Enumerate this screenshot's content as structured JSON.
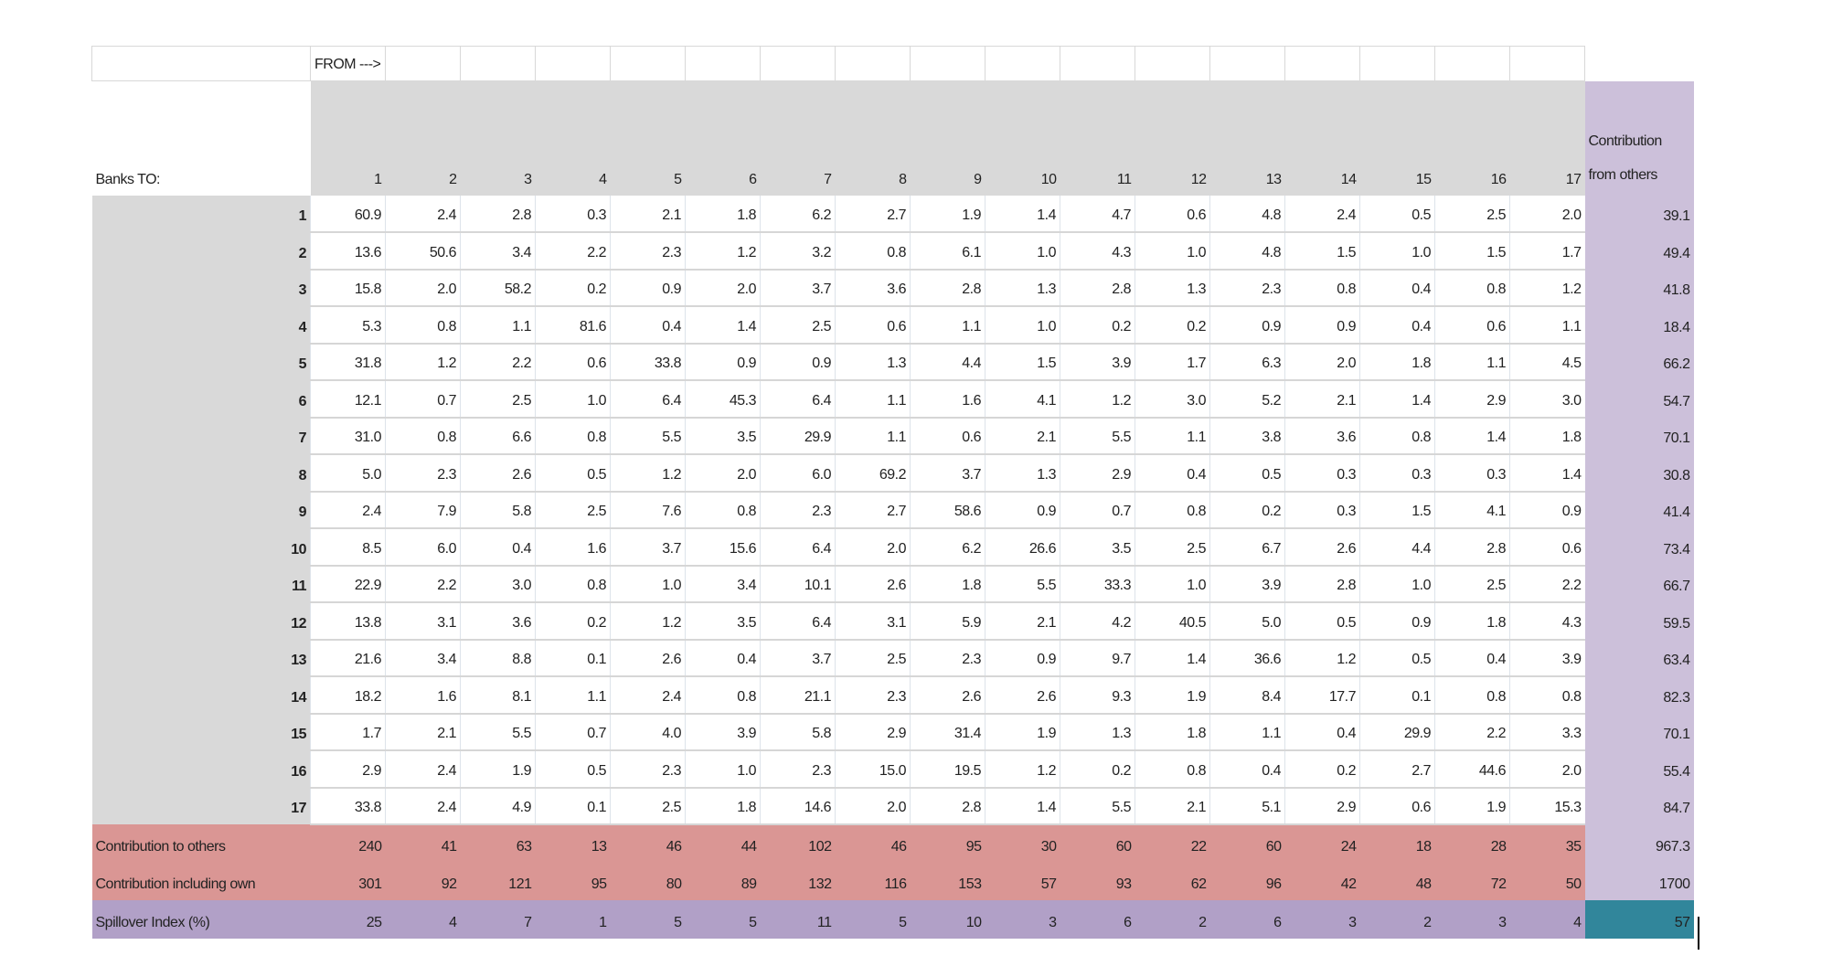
{
  "corner_label": "",
  "from_label": "FROM --->",
  "row_header_label": "Banks TO:",
  "last_col_header": "Contribution from others",
  "columns": [
    "1",
    "2",
    "3",
    "4",
    "5",
    "6",
    "7",
    "8",
    "9",
    "10",
    "11",
    "12",
    "13",
    "14",
    "15",
    "16",
    "17"
  ],
  "rows": [
    {
      "label": "1",
      "values": [
        "60.9",
        "2.4",
        "2.8",
        "0.3",
        "2.1",
        "1.8",
        "6.2",
        "2.7",
        "1.9",
        "1.4",
        "4.7",
        "0.6",
        "4.8",
        "2.4",
        "0.5",
        "2.5",
        "2.0"
      ],
      "from_others": "39.1"
    },
    {
      "label": "2",
      "values": [
        "13.6",
        "50.6",
        "3.4",
        "2.2",
        "2.3",
        "1.2",
        "3.2",
        "0.8",
        "6.1",
        "1.0",
        "4.3",
        "1.0",
        "4.8",
        "1.5",
        "1.0",
        "1.5",
        "1.7"
      ],
      "from_others": "49.4"
    },
    {
      "label": "3",
      "values": [
        "15.8",
        "2.0",
        "58.2",
        "0.2",
        "0.9",
        "2.0",
        "3.7",
        "3.6",
        "2.8",
        "1.3",
        "2.8",
        "1.3",
        "2.3",
        "0.8",
        "0.4",
        "0.8",
        "1.2"
      ],
      "from_others": "41.8"
    },
    {
      "label": "4",
      "values": [
        "5.3",
        "0.8",
        "1.1",
        "81.6",
        "0.4",
        "1.4",
        "2.5",
        "0.6",
        "1.1",
        "1.0",
        "0.2",
        "0.2",
        "0.9",
        "0.9",
        "0.4",
        "0.6",
        "1.1"
      ],
      "from_others": "18.4"
    },
    {
      "label": "5",
      "values": [
        "31.8",
        "1.2",
        "2.2",
        "0.6",
        "33.8",
        "0.9",
        "0.9",
        "1.3",
        "4.4",
        "1.5",
        "3.9",
        "1.7",
        "6.3",
        "2.0",
        "1.8",
        "1.1",
        "4.5"
      ],
      "from_others": "66.2"
    },
    {
      "label": "6",
      "values": [
        "12.1",
        "0.7",
        "2.5",
        "1.0",
        "6.4",
        "45.3",
        "6.4",
        "1.1",
        "1.6",
        "4.1",
        "1.2",
        "3.0",
        "5.2",
        "2.1",
        "1.4",
        "2.9",
        "3.0"
      ],
      "from_others": "54.7"
    },
    {
      "label": "7",
      "values": [
        "31.0",
        "0.8",
        "6.6",
        "0.8",
        "5.5",
        "3.5",
        "29.9",
        "1.1",
        "0.6",
        "2.1",
        "5.5",
        "1.1",
        "3.8",
        "3.6",
        "0.8",
        "1.4",
        "1.8"
      ],
      "from_others": "70.1"
    },
    {
      "label": "8",
      "values": [
        "5.0",
        "2.3",
        "2.6",
        "0.5",
        "1.2",
        "2.0",
        "6.0",
        "69.2",
        "3.7",
        "1.3",
        "2.9",
        "0.4",
        "0.5",
        "0.3",
        "0.3",
        "0.3",
        "1.4"
      ],
      "from_others": "30.8"
    },
    {
      "label": "9",
      "values": [
        "2.4",
        "7.9",
        "5.8",
        "2.5",
        "7.6",
        "0.8",
        "2.3",
        "2.7",
        "58.6",
        "0.9",
        "0.7",
        "0.8",
        "0.2",
        "0.3",
        "1.5",
        "4.1",
        "0.9"
      ],
      "from_others": "41.4"
    },
    {
      "label": "10",
      "values": [
        "8.5",
        "6.0",
        "0.4",
        "1.6",
        "3.7",
        "15.6",
        "6.4",
        "2.0",
        "6.2",
        "26.6",
        "3.5",
        "2.5",
        "6.7",
        "2.6",
        "4.4",
        "2.8",
        "0.6"
      ],
      "from_others": "73.4"
    },
    {
      "label": "11",
      "values": [
        "22.9",
        "2.2",
        "3.0",
        "0.8",
        "1.0",
        "3.4",
        "10.1",
        "2.6",
        "1.8",
        "5.5",
        "33.3",
        "1.0",
        "3.9",
        "2.8",
        "1.0",
        "2.5",
        "2.2"
      ],
      "from_others": "66.7"
    },
    {
      "label": "12",
      "values": [
        "13.8",
        "3.1",
        "3.6",
        "0.2",
        "1.2",
        "3.5",
        "6.4",
        "3.1",
        "5.9",
        "2.1",
        "4.2",
        "40.5",
        "5.0",
        "0.5",
        "0.9",
        "1.8",
        "4.3"
      ],
      "from_others": "59.5"
    },
    {
      "label": "13",
      "values": [
        "21.6",
        "3.4",
        "8.8",
        "0.1",
        "2.6",
        "0.4",
        "3.7",
        "2.5",
        "2.3",
        "0.9",
        "9.7",
        "1.4",
        "36.6",
        "1.2",
        "0.5",
        "0.4",
        "3.9"
      ],
      "from_others": "63.4"
    },
    {
      "label": "14",
      "values": [
        "18.2",
        "1.6",
        "8.1",
        "1.1",
        "2.4",
        "0.8",
        "21.1",
        "2.3",
        "2.6",
        "2.6",
        "9.3",
        "1.9",
        "8.4",
        "17.7",
        "0.1",
        "0.8",
        "0.8"
      ],
      "from_others": "82.3"
    },
    {
      "label": "15",
      "values": [
        "1.7",
        "2.1",
        "5.5",
        "0.7",
        "4.0",
        "3.9",
        "5.8",
        "2.9",
        "31.4",
        "1.9",
        "1.3",
        "1.8",
        "1.1",
        "0.4",
        "29.9",
        "2.2",
        "3.3"
      ],
      "from_others": "70.1"
    },
    {
      "label": "16",
      "values": [
        "2.9",
        "2.4",
        "1.9",
        "0.5",
        "2.3",
        "1.0",
        "2.3",
        "15.0",
        "19.5",
        "1.2",
        "0.2",
        "0.8",
        "0.4",
        "0.2",
        "2.7",
        "44.6",
        "2.0"
      ],
      "from_others": "55.4"
    },
    {
      "label": "17",
      "values": [
        "33.8",
        "2.4",
        "4.9",
        "0.1",
        "2.5",
        "1.8",
        "14.6",
        "2.0",
        "2.8",
        "1.4",
        "5.5",
        "2.1",
        "5.1",
        "2.9",
        "0.6",
        "1.9",
        "15.3"
      ],
      "from_others": "84.7"
    }
  ],
  "summary": [
    {
      "label": "Contribution to others",
      "values": [
        "240",
        "41",
        "63",
        "13",
        "46",
        "44",
        "102",
        "46",
        "95",
        "30",
        "60",
        "22",
        "60",
        "24",
        "18",
        "28",
        "35"
      ],
      "total": "967.3",
      "kind": "sum"
    },
    {
      "label": "Contribution including own",
      "values": [
        "301",
        "92",
        "121",
        "95",
        "80",
        "89",
        "132",
        "116",
        "153",
        "57",
        "93",
        "62",
        "96",
        "42",
        "48",
        "72",
        "50"
      ],
      "total": "1700",
      "kind": "sum"
    },
    {
      "label": "Spillover Index (%)",
      "values": [
        "25",
        "4",
        "7",
        "1",
        "5",
        "5",
        "11",
        "5",
        "10",
        "3",
        "6",
        "2",
        "6",
        "3",
        "2",
        "3",
        "4"
      ],
      "total": "57",
      "kind": "spill"
    }
  ],
  "colors": {
    "header_gray": "#d9d9d9",
    "from_others_lavender": "#ccc0da",
    "summary_salmon": "#da9694",
    "spillover_purple": "#b1a0c7",
    "spillover_total_teal": "#31869b"
  }
}
